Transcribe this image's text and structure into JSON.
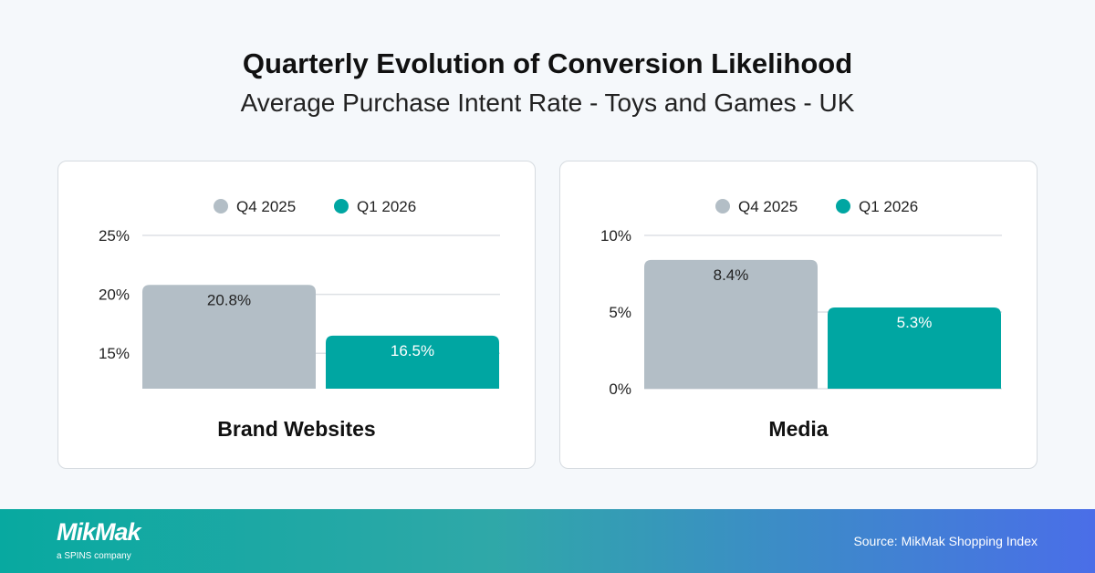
{
  "header": {
    "title": "Quarterly Evolution of Conversion Likelihood",
    "subtitle": "Average Purchase Intent Rate - Toys and Games - UK"
  },
  "colors": {
    "q4": "#b3bec6",
    "q1": "#00a6a2",
    "grid": "#dde1e5"
  },
  "chart_data": [
    {
      "type": "bar",
      "title": "Brand Websites",
      "legend": [
        "Q4 2025",
        "Q1 2026"
      ],
      "legend_position": "top",
      "categories": [
        "Q4 2025",
        "Q1 2026"
      ],
      "values": [
        20.8,
        16.5
      ],
      "labels": [
        "20.8%",
        "16.5%"
      ],
      "yticks": [
        15,
        20,
        25
      ],
      "ytick_labels": [
        "15%",
        "20%",
        "25%"
      ],
      "ylim": [
        12,
        25
      ],
      "grid": true
    },
    {
      "type": "bar",
      "title": "Media",
      "legend": [
        "Q4 2025",
        "Q1 2026"
      ],
      "legend_position": "top",
      "categories": [
        "Q4 2025",
        "Q1 2026"
      ],
      "values": [
        8.4,
        5.3
      ],
      "labels": [
        "8.4%",
        "5.3%"
      ],
      "yticks": [
        0,
        5,
        10
      ],
      "ytick_labels": [
        "0%",
        "5%",
        "10%"
      ],
      "ylim": [
        0,
        10
      ],
      "grid": true
    }
  ],
  "footer": {
    "logo": "MikMak",
    "logo_tagline": "a SPINS company",
    "source": "Source: MikMak Shopping Index"
  }
}
